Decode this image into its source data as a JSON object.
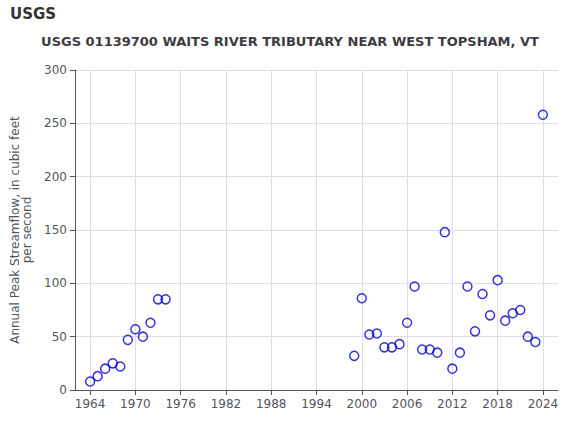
{
  "chart_data": {
    "type": "scatter",
    "title": "USGS 01139700 WAITS RIVER TRIBUTARY NEAR WEST TOPSHAM, VT",
    "annotations": [
      "USGS"
    ],
    "ylabel": "Annual Peak Streamflow, in cubic feet\nper second",
    "x": [
      1964,
      1965,
      1966,
      1967,
      1968,
      1969,
      1970,
      1971,
      1972,
      1973,
      1974,
      1999,
      2000,
      2001,
      2002,
      2003,
      2004,
      2005,
      2006,
      2007,
      2008,
      2009,
      2010,
      2011,
      2012,
      2013,
      2014,
      2015,
      2016,
      2017,
      2018,
      2019,
      2020,
      2021,
      2022,
      2023,
      2024
    ],
    "values": [
      8,
      13,
      20,
      25,
      22,
      47,
      57,
      50,
      63,
      85,
      85,
      32,
      86,
      52,
      53,
      40,
      40,
      43,
      63,
      97,
      38,
      38,
      35,
      148,
      20,
      35,
      97,
      55,
      90,
      70,
      103,
      65,
      72,
      75,
      50,
      45,
      258
    ],
    "color": "#0000cc",
    "marker": "circle",
    "xlim": [
      1962,
      2026
    ],
    "ylim": [
      0,
      300
    ],
    "xticks": [
      1964,
      1970,
      1976,
      1982,
      1988,
      1994,
      2000,
      2006,
      2012,
      2018,
      2024
    ],
    "yticks": [
      0,
      50,
      100,
      150,
      200,
      250,
      300
    ],
    "grid": true
  }
}
